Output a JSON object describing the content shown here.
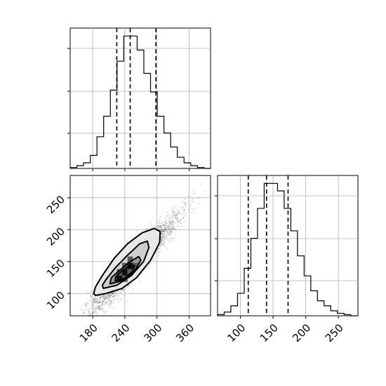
{
  "chart_data": {
    "type": "corner",
    "parameters": [
      "",
      ""
    ],
    "grid": true,
    "colors": {
      "line": "#000000",
      "grid": "#b0b0b0",
      "points": "#000000"
    },
    "hist_x": {
      "xlim": [
        138,
        400
      ],
      "xticks": [
        180,
        240,
        300,
        360
      ],
      "bin_edges": [
        138,
        150.5,
        163,
        175.5,
        188,
        200.5,
        213,
        225.5,
        238,
        250.5,
        263,
        275.5,
        288,
        300.5,
        313,
        325.5,
        338,
        350.5,
        363,
        375.5,
        388,
        400.5
      ],
      "counts": [
        1,
        3,
        6,
        14,
        34,
        56,
        84,
        115,
        142,
        142,
        127,
        102,
        82,
        56,
        38,
        23,
        12,
        6,
        3,
        1,
        0
      ],
      "quantiles": [
        225,
        250,
        298
      ]
    },
    "hist_y": {
      "xlim": [
        65,
        280
      ],
      "xticks": [
        100,
        150,
        200,
        250
      ],
      "bin_edges": [
        65,
        75.2,
        85.4,
        95.6,
        105.8,
        116,
        126.2,
        136.4,
        146.6,
        156.8,
        167,
        177.2,
        187.4,
        197.6,
        207.8,
        218,
        228.2,
        238.4,
        248.6,
        258.8,
        269,
        279.2
      ],
      "counts": [
        1,
        3,
        8,
        18,
        38,
        62,
        86,
        106,
        106,
        100,
        86,
        68,
        48,
        32,
        20,
        12,
        8,
        4,
        2,
        1,
        0
      ],
      "quantiles": [
        112,
        140,
        173
      ]
    },
    "scatter2d": {
      "xlim": [
        138,
        400
      ],
      "ylim": [
        65,
        285
      ],
      "xticks": [
        180,
        240,
        300,
        360
      ],
      "yticks": [
        100,
        150,
        200,
        250
      ],
      "density_blocks": [
        {
          "x": 225,
          "y": 118,
          "w": 10,
          "h": 10,
          "level": 3
        },
        {
          "x": 235,
          "y": 128,
          "w": 10,
          "h": 10,
          "level": 3
        },
        {
          "x": 245,
          "y": 138,
          "w": 10,
          "h": 10,
          "level": 3
        },
        {
          "x": 225,
          "y": 128,
          "w": 10,
          "h": 10,
          "level": 2
        },
        {
          "x": 235,
          "y": 118,
          "w": 10,
          "h": 10,
          "level": 2
        },
        {
          "x": 245,
          "y": 128,
          "w": 10,
          "h": 10,
          "level": 2
        },
        {
          "x": 255,
          "y": 138,
          "w": 10,
          "h": 10,
          "level": 2
        },
        {
          "x": 245,
          "y": 148,
          "w": 10,
          "h": 10,
          "level": 2
        },
        {
          "x": 235,
          "y": 138,
          "w": 10,
          "h": 10,
          "level": 2
        }
      ],
      "contours": [
        [
          [
            185,
            97
          ],
          [
            205,
            100
          ],
          [
            235,
            108
          ],
          [
            262,
            125
          ],
          [
            288,
            152
          ],
          [
            305,
            180
          ],
          [
            306,
            197
          ],
          [
            295,
            202
          ],
          [
            272,
            195
          ],
          [
            245,
            178
          ],
          [
            220,
            155
          ],
          [
            198,
            128
          ],
          [
            185,
            110
          ],
          [
            182,
            100
          ]
        ],
        [
          [
            200,
            108
          ],
          [
            225,
            113
          ],
          [
            252,
            128
          ],
          [
            275,
            150
          ],
          [
            285,
            172
          ],
          [
            282,
            182
          ],
          [
            268,
            178
          ],
          [
            245,
            160
          ],
          [
            222,
            140
          ],
          [
            205,
            122
          ],
          [
            198,
            113
          ]
        ],
        [
          [
            212,
            115
          ],
          [
            235,
            120
          ],
          [
            258,
            135
          ],
          [
            270,
            152
          ],
          [
            266,
            158
          ],
          [
            250,
            150
          ],
          [
            230,
            136
          ],
          [
            215,
            125
          ]
        ],
        [
          [
            222,
            120
          ],
          [
            240,
            124
          ],
          [
            255,
            135
          ],
          [
            258,
            144
          ],
          [
            248,
            143
          ],
          [
            233,
            134
          ],
          [
            223,
            126
          ]
        ]
      ]
    }
  }
}
